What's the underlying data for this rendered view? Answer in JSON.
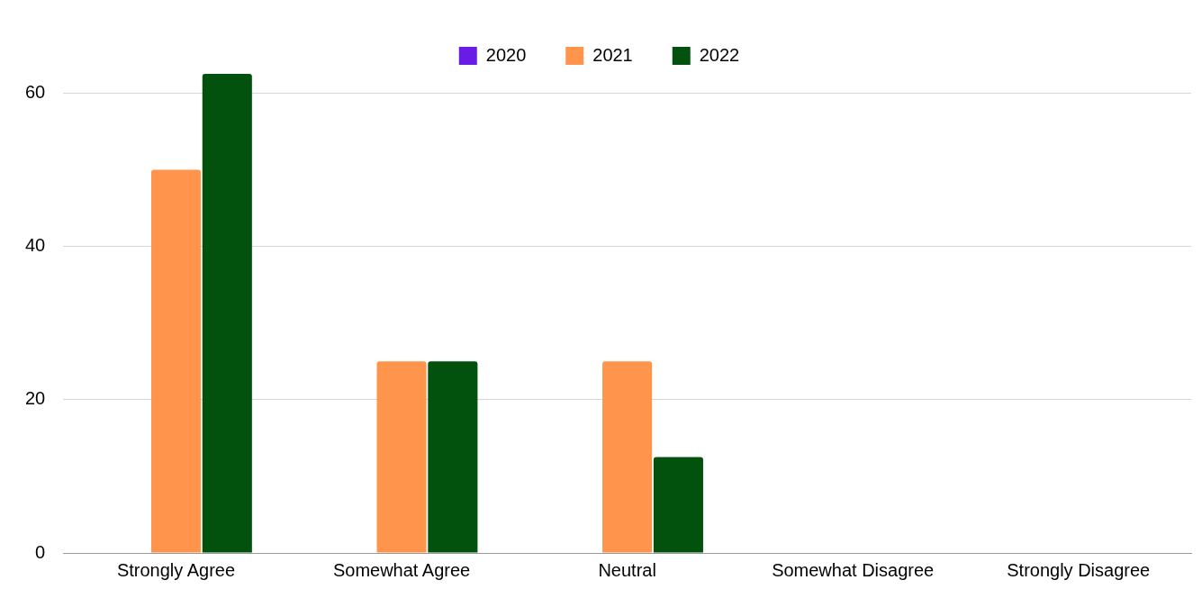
{
  "chart_data": {
    "type": "bar",
    "categories": [
      "Strongly Agree",
      "Somewhat Agree",
      "Neutral",
      "Somewhat Disagree",
      "Strongly Disagree"
    ],
    "series": [
      {
        "name": "2020",
        "color": "#6a1be6",
        "values": [
          0,
          0,
          0,
          0,
          0
        ]
      },
      {
        "name": "2021",
        "color": "#ff944d",
        "values": [
          50,
          25,
          25,
          0,
          0
        ]
      },
      {
        "name": "2022",
        "color": "#02520e",
        "values": [
          62.5,
          25,
          12.5,
          0,
          0
        ]
      }
    ],
    "ylim": [
      0,
      62.5
    ],
    "yticks": [
      0,
      20,
      40,
      60
    ],
    "grid": "y",
    "legend": "top"
  }
}
